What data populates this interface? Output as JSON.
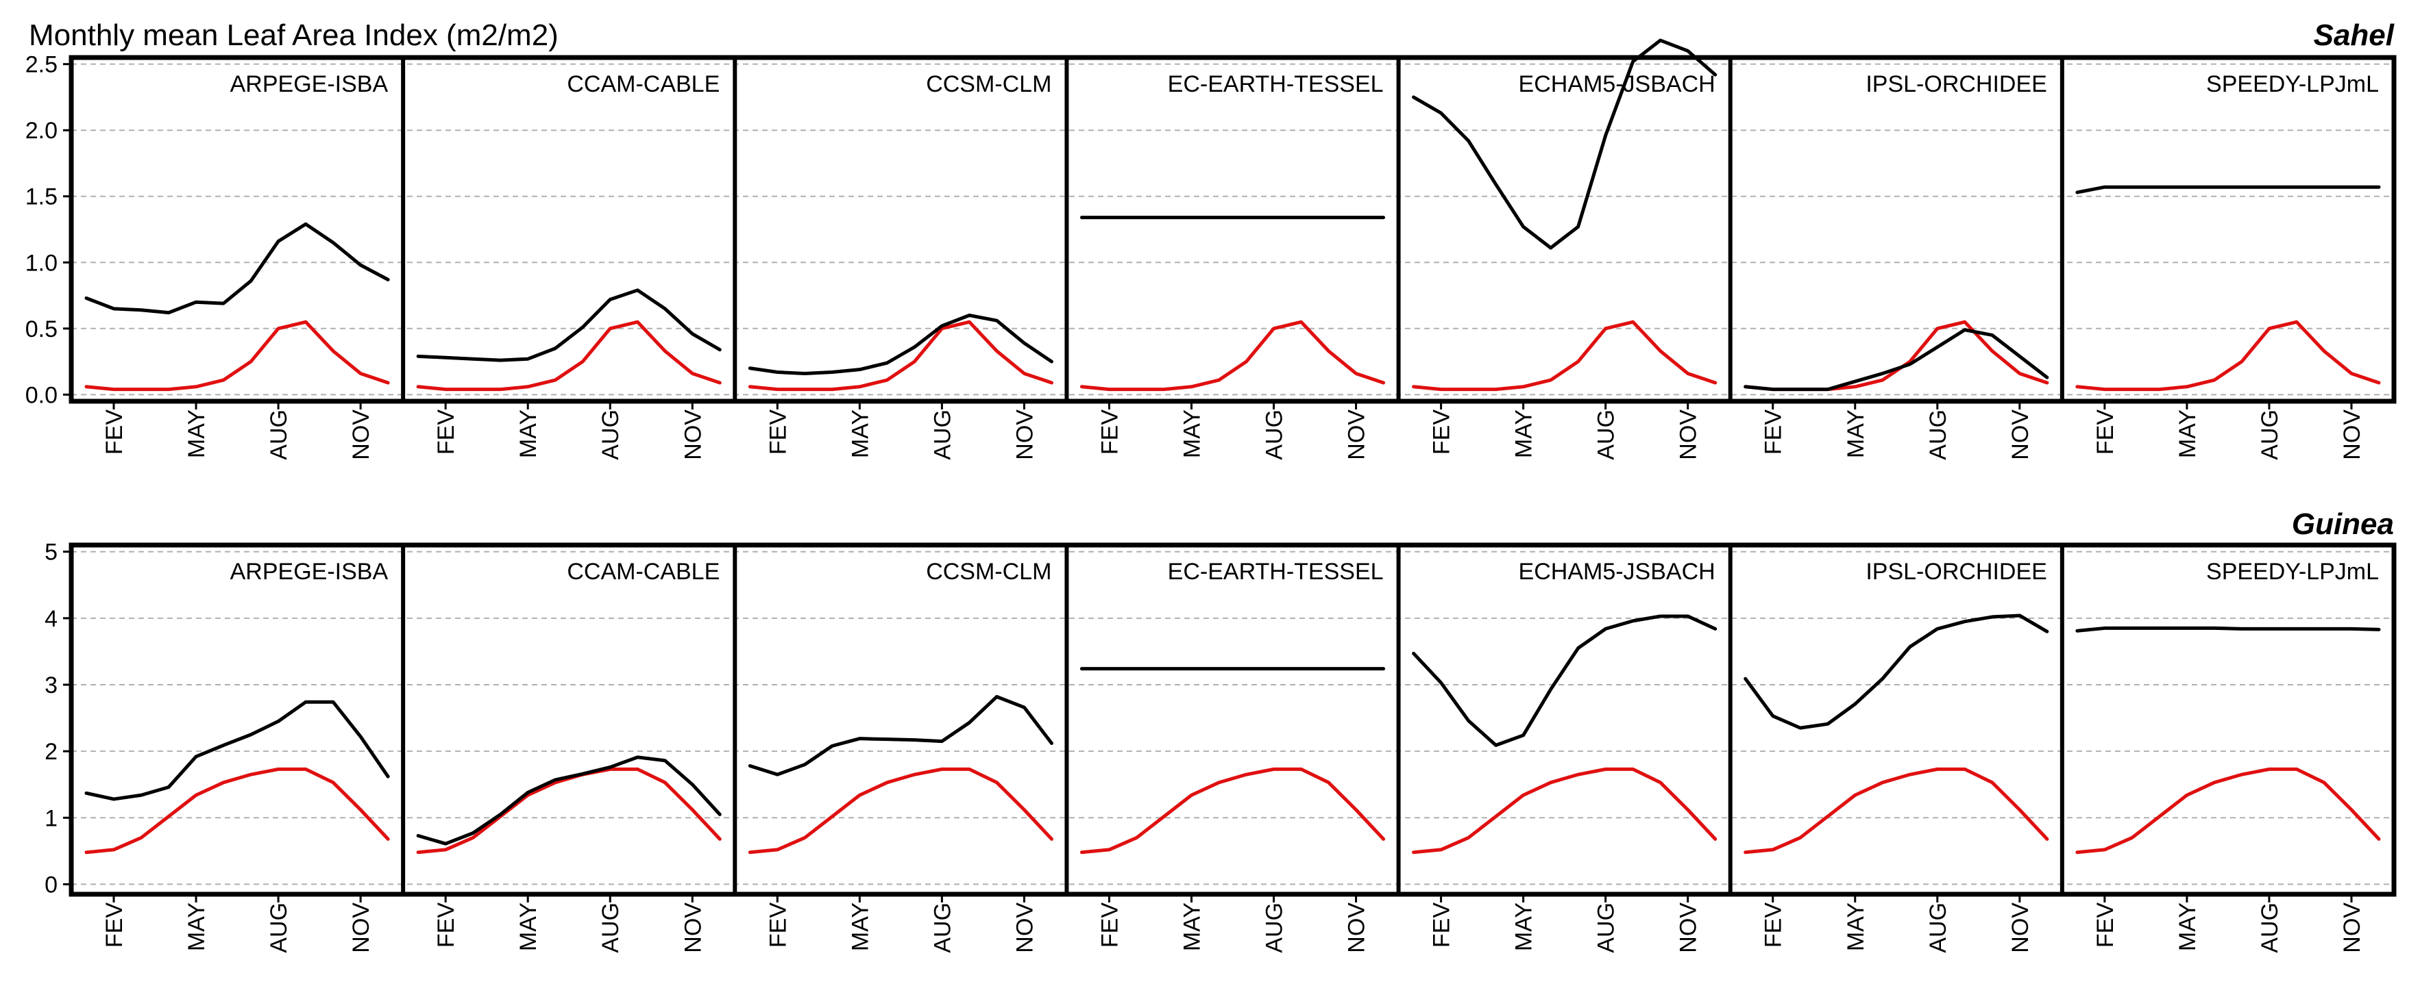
{
  "title": "Monthly mean Leaf Area Index  (m2/m2)",
  "colors": {
    "model": "#000000",
    "reference": "#e01010"
  },
  "months_axis": [
    "FEV",
    "MAY",
    "AUG",
    "NOV"
  ],
  "chart_data": [
    {
      "type": "line",
      "region": "Sahel",
      "ylim": [
        -0.05,
        2.55
      ],
      "yticks": [
        "0.0",
        "0.5",
        "1.0",
        "1.5",
        "2.0",
        "2.5"
      ],
      "ytick_values": [
        0,
        0.5,
        1.0,
        1.5,
        2.0,
        2.5
      ],
      "x": [
        1,
        2,
        3,
        4,
        5,
        6,
        7,
        8,
        9,
        10,
        11,
        12
      ],
      "xtick_positions": [
        2,
        5,
        8,
        11
      ],
      "xticklabels": [
        "FEV",
        "MAY",
        "AUG",
        "NOV"
      ],
      "reference": [
        0.06,
        0.04,
        0.04,
        0.04,
        0.06,
        0.11,
        0.25,
        0.5,
        0.55,
        0.33,
        0.16,
        0.09
      ],
      "panels": [
        {
          "label": "ARPEGE-ISBA",
          "values": [
            0.73,
            0.65,
            0.64,
            0.62,
            0.7,
            0.69,
            0.86,
            1.16,
            1.29,
            1.15,
            0.98,
            0.87
          ]
        },
        {
          "label": "CCAM-CABLE",
          "values": [
            0.29,
            0.28,
            0.27,
            0.26,
            0.27,
            0.35,
            0.51,
            0.72,
            0.79,
            0.65,
            0.46,
            0.34
          ]
        },
        {
          "label": "CCSM-CLM",
          "values": [
            0.2,
            0.17,
            0.16,
            0.17,
            0.19,
            0.24,
            0.36,
            0.52,
            0.6,
            0.56,
            0.39,
            0.25
          ]
        },
        {
          "label": "EC-EARTH-TESSEL",
          "values": [
            1.34,
            1.34,
            1.34,
            1.34,
            1.34,
            1.34,
            1.34,
            1.34,
            1.34,
            1.34,
            1.34,
            1.34
          ]
        },
        {
          "label": "ECHAM5-JSBACH",
          "values": [
            2.25,
            2.13,
            1.92,
            1.59,
            1.27,
            1.11,
            1.27,
            1.96,
            2.52,
            2.68,
            2.6,
            2.42
          ]
        },
        {
          "label": "IPSL-ORCHIDEE",
          "values": [
            0.06,
            0.04,
            0.04,
            0.04,
            0.1,
            0.16,
            0.23,
            0.36,
            0.49,
            0.45,
            0.29,
            0.13
          ]
        },
        {
          "label": "SPEEDY-LPJmL",
          "values": [
            1.53,
            1.57,
            1.57,
            1.57,
            1.57,
            1.57,
            1.57,
            1.57,
            1.57,
            1.57,
            1.57,
            1.57
          ]
        }
      ]
    },
    {
      "type": "line",
      "region": "Guinea",
      "ylim": [
        -0.15,
        5.1
      ],
      "yticks": [
        "0",
        "1",
        "2",
        "3",
        "4",
        "5"
      ],
      "ytick_values": [
        0,
        1,
        2,
        3,
        4,
        5
      ],
      "x": [
        1,
        2,
        3,
        4,
        5,
        6,
        7,
        8,
        9,
        10,
        11,
        12
      ],
      "xtick_positions": [
        2,
        5,
        8,
        11
      ],
      "xticklabels": [
        "FEV",
        "MAY",
        "AUG",
        "NOV"
      ],
      "reference": [
        0.48,
        0.52,
        0.7,
        1.02,
        1.34,
        1.53,
        1.65,
        1.73,
        1.73,
        1.53,
        1.12,
        0.68
      ],
      "panels": [
        {
          "label": "ARPEGE-ISBA",
          "values": [
            1.37,
            1.28,
            1.34,
            1.46,
            1.92,
            2.09,
            2.25,
            2.45,
            2.74,
            2.74,
            2.22,
            1.62
          ]
        },
        {
          "label": "CCAM-CABLE",
          "values": [
            0.73,
            0.61,
            0.77,
            1.05,
            1.38,
            1.57,
            1.66,
            1.76,
            1.91,
            1.86,
            1.5,
            1.05
          ]
        },
        {
          "label": "CCSM-CLM",
          "values": [
            1.78,
            1.65,
            1.8,
            2.08,
            2.19,
            2.18,
            2.17,
            2.15,
            2.43,
            2.82,
            2.66,
            2.12
          ]
        },
        {
          "label": "EC-EARTH-TESSEL",
          "values": [
            3.24,
            3.24,
            3.24,
            3.24,
            3.24,
            3.24,
            3.24,
            3.24,
            3.24,
            3.24,
            3.24,
            3.24
          ]
        },
        {
          "label": "ECHAM5-JSBACH",
          "values": [
            3.47,
            3.03,
            2.46,
            2.09,
            2.24,
            2.93,
            3.55,
            3.84,
            3.96,
            4.03,
            4.03,
            3.84
          ]
        },
        {
          "label": "IPSL-ORCHIDEE",
          "values": [
            3.09,
            2.53,
            2.35,
            2.41,
            2.71,
            3.09,
            3.57,
            3.84,
            3.95,
            4.02,
            4.04,
            3.8
          ]
        },
        {
          "label": "SPEEDY-LPJmL",
          "values": [
            3.81,
            3.85,
            3.85,
            3.85,
            3.85,
            3.85,
            3.84,
            3.84,
            3.84,
            3.84,
            3.84,
            3.83
          ]
        }
      ]
    }
  ]
}
